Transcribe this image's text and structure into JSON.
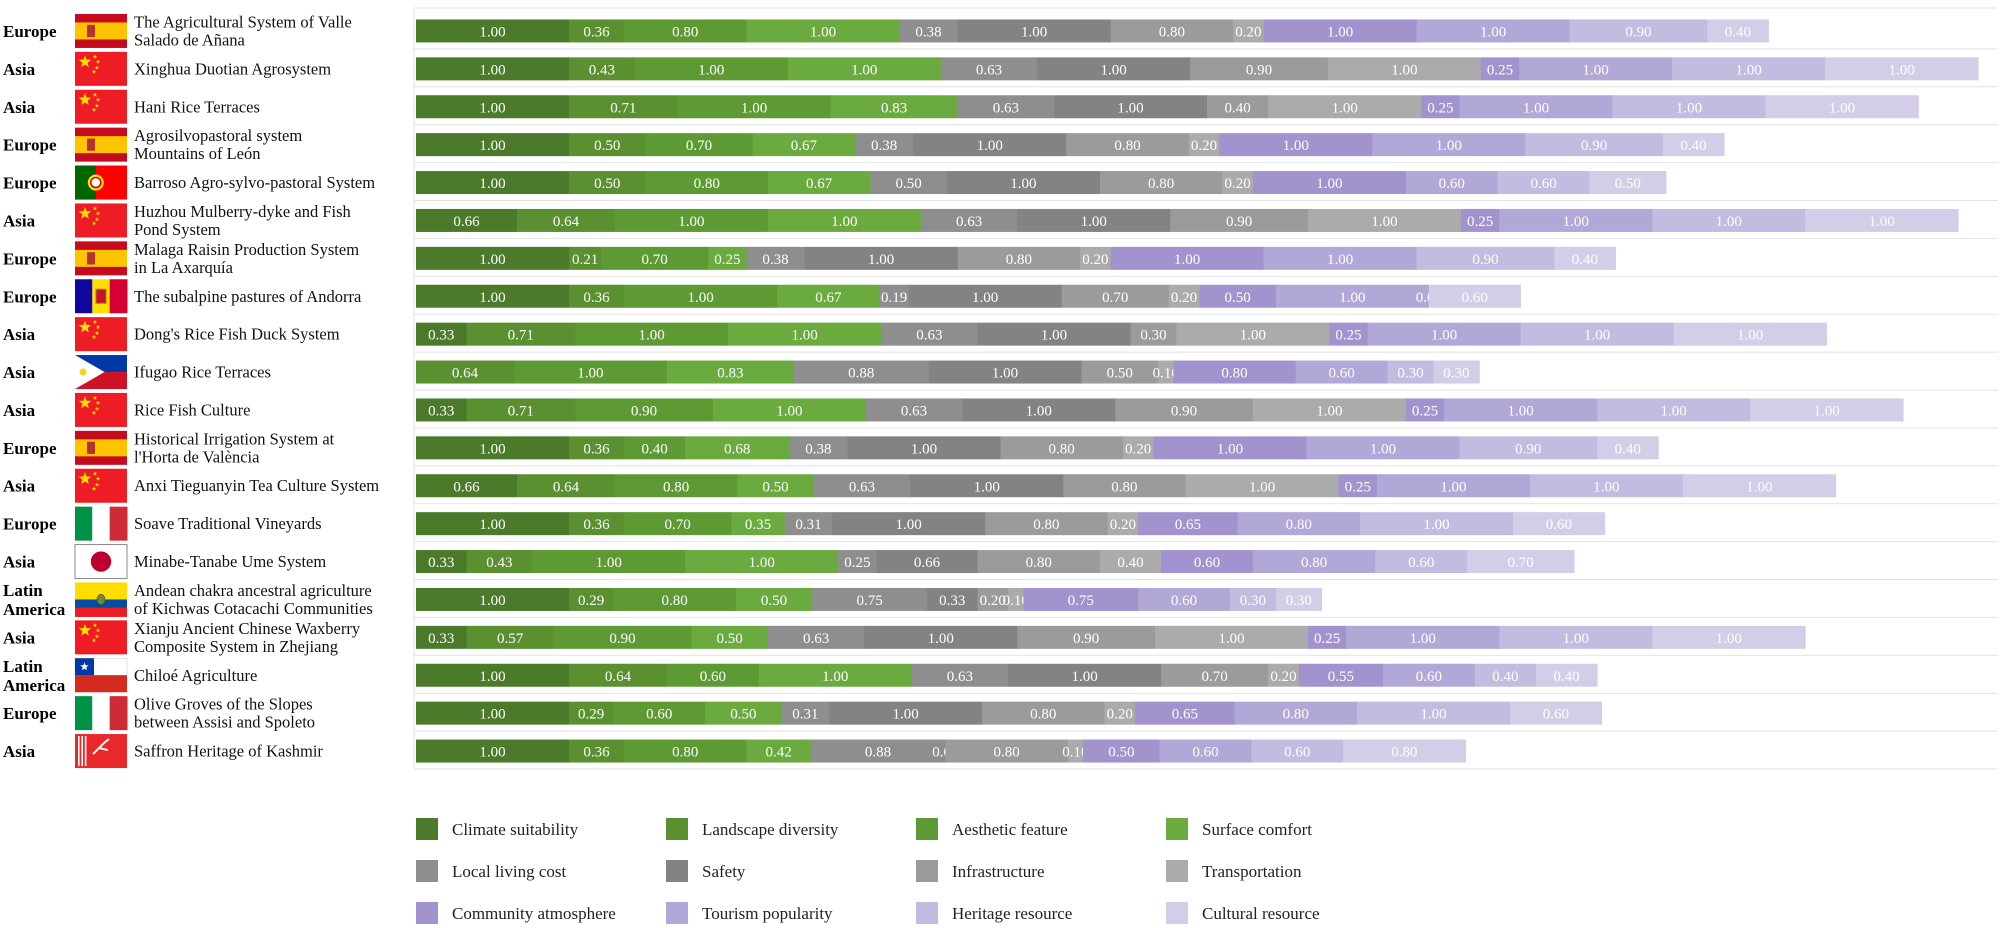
{
  "chart_data": {
    "type": "bar",
    "orientation": "horizontal",
    "stacked": true,
    "factors": [
      {
        "name": "Climate suitability",
        "color": "#4a7a2a"
      },
      {
        "name": "Landscape diversity",
        "color": "#5a902f"
      },
      {
        "name": "Aesthetic feature",
        "color": "#5d9a33"
      },
      {
        "name": "Surface comfort",
        "color": "#6aaa3e"
      },
      {
        "name": "Local living cost",
        "color": "#8e8e8e"
      },
      {
        "name": "Safety",
        "color": "#838383"
      },
      {
        "name": "Infrastructure",
        "color": "#9b9b9b"
      },
      {
        "name": "Transportation",
        "color": "#ababab"
      },
      {
        "name": "Community atmosphere",
        "color": "#a293cf"
      },
      {
        "name": "Tourism popularity",
        "color": "#b2a8d8"
      },
      {
        "name": "Heritage resource",
        "color": "#c4bce0"
      },
      {
        "name": "Cultural resource",
        "color": "#d3cde8"
      }
    ],
    "systems": [
      {
        "region": [
          "Europe"
        ],
        "flag": "spain",
        "name": [
          "The Agricultural System of Valle",
          "Salado de Añana"
        ],
        "values": [
          1.0,
          0.36,
          0.8,
          1.0,
          0.38,
          1.0,
          0.8,
          0.2,
          1.0,
          1.0,
          0.9,
          0.4
        ]
      },
      {
        "region": [
          "Asia"
        ],
        "flag": "china",
        "name": [
          "Xinghua Duotian Agrosystem"
        ],
        "values": [
          1.0,
          0.43,
          1.0,
          1.0,
          0.63,
          1.0,
          0.9,
          1.0,
          0.25,
          1.0,
          1.0,
          1.0
        ]
      },
      {
        "region": [
          "Asia"
        ],
        "flag": "china",
        "name": [
          "Hani Rice Terraces"
        ],
        "values": [
          1.0,
          0.71,
          1.0,
          0.83,
          0.63,
          1.0,
          0.4,
          1.0,
          0.25,
          1.0,
          1.0,
          1.0
        ]
      },
      {
        "region": [
          "Europe"
        ],
        "flag": "spain",
        "name": [
          "Agrosilvopastoral system",
          "Mountains of León"
        ],
        "values": [
          1.0,
          0.5,
          0.7,
          0.67,
          0.38,
          1.0,
          0.8,
          0.2,
          1.0,
          1.0,
          0.9,
          0.4
        ]
      },
      {
        "region": [
          "Europe"
        ],
        "flag": "portugal",
        "name": [
          "Barroso Agro-sylvo-pastoral System"
        ],
        "values": [
          1.0,
          0.5,
          0.8,
          0.67,
          0.5,
          1.0,
          0.8,
          0.2,
          1.0,
          0.6,
          0.6,
          0.5
        ]
      },
      {
        "region": [
          "Asia"
        ],
        "flag": "china",
        "name": [
          "Huzhou Mulberry-dyke and Fish",
          "Pond System"
        ],
        "values": [
          0.66,
          0.64,
          1.0,
          1.0,
          0.63,
          1.0,
          0.9,
          1.0,
          0.25,
          1.0,
          1.0,
          1.0
        ]
      },
      {
        "region": [
          "Europe"
        ],
        "flag": "spain",
        "name": [
          "Malaga Raisin Production System",
          "in La Axarquía"
        ],
        "values": [
          1.0,
          0.21,
          0.7,
          0.25,
          0.38,
          1.0,
          0.8,
          0.2,
          1.0,
          1.0,
          0.9,
          0.4
        ]
      },
      {
        "region": [
          "Europe"
        ],
        "flag": "andorra",
        "name": [
          "The subalpine pastures of Andorra"
        ],
        "values": [
          1.0,
          0.36,
          1.0,
          0.67,
          0.19,
          1.0,
          0.7,
          0.2,
          0.5,
          1.0,
          0.0,
          0.6
        ]
      },
      {
        "region": [
          "Asia"
        ],
        "flag": "china",
        "name": [
          "Dong's Rice Fish Duck System"
        ],
        "values": [
          0.33,
          0.71,
          1.0,
          1.0,
          0.63,
          1.0,
          0.3,
          1.0,
          0.25,
          1.0,
          1.0,
          1.0
        ]
      },
      {
        "region": [
          "Asia"
        ],
        "flag": "philippines",
        "name": [
          "Ifugao Rice Terraces"
        ],
        "values": [
          0.0,
          0.64,
          1.0,
          0.83,
          0.88,
          1.0,
          0.5,
          0.1,
          0.8,
          0.6,
          0.3,
          0.3
        ]
      },
      {
        "region": [
          "Asia"
        ],
        "flag": "china",
        "name": [
          "Rice Fish Culture"
        ],
        "values": [
          0.33,
          0.71,
          0.9,
          1.0,
          0.63,
          1.0,
          0.9,
          1.0,
          0.25,
          1.0,
          1.0,
          1.0
        ]
      },
      {
        "region": [
          "Europe"
        ],
        "flag": "spain",
        "name": [
          "Historical Irrigation System at",
          "l'Horta de València"
        ],
        "values": [
          1.0,
          0.36,
          0.4,
          0.68,
          0.38,
          1.0,
          0.8,
          0.2,
          1.0,
          1.0,
          0.9,
          0.4
        ]
      },
      {
        "region": [
          "Asia"
        ],
        "flag": "china",
        "name": [
          "Anxi Tieguanyin Tea Culture System"
        ],
        "values": [
          0.66,
          0.64,
          0.8,
          0.5,
          0.63,
          1.0,
          0.8,
          1.0,
          0.25,
          1.0,
          1.0,
          1.0
        ]
      },
      {
        "region": [
          "Europe"
        ],
        "flag": "italy",
        "name": [
          "Soave Traditional Vineyards"
        ],
        "values": [
          1.0,
          0.36,
          0.7,
          0.35,
          0.31,
          1.0,
          0.8,
          0.2,
          0.65,
          0.8,
          1.0,
          0.6
        ]
      },
      {
        "region": [
          "Asia"
        ],
        "flag": "japan",
        "name": [
          "Minabe-Tanabe Ume System"
        ],
        "values": [
          0.33,
          0.43,
          1.0,
          1.0,
          0.25,
          0.66,
          0.8,
          0.4,
          0.6,
          0.8,
          0.6,
          0.7
        ]
      },
      {
        "region": [
          "Latin",
          "America"
        ],
        "flag": "ecuador",
        "name": [
          "Andean chakra ancestral agriculture",
          "of Kichwas Cotacachi Communities"
        ],
        "values": [
          1.0,
          0.29,
          0.8,
          0.5,
          0.75,
          0.33,
          0.2,
          0.1,
          0.75,
          0.6,
          0.3,
          0.3
        ]
      },
      {
        "region": [
          "Asia"
        ],
        "flag": "china",
        "name": [
          "Xianju Ancient Chinese Waxberry",
          "Composite System in Zhejiang"
        ],
        "values": [
          0.33,
          0.57,
          0.9,
          0.5,
          0.63,
          1.0,
          0.9,
          1.0,
          0.25,
          1.0,
          1.0,
          1.0
        ]
      },
      {
        "region": [
          "Latin",
          "America"
        ],
        "flag": "chile",
        "name": [
          "Chiloé Agriculture"
        ],
        "values": [
          1.0,
          0.64,
          0.6,
          1.0,
          0.63,
          1.0,
          0.7,
          0.2,
          0.55,
          0.6,
          0.4,
          0.4
        ]
      },
      {
        "region": [
          "Europe"
        ],
        "flag": "italy",
        "name": [
          "Olive Groves of the Slopes",
          "between Assisi and Spoleto"
        ],
        "values": [
          1.0,
          0.29,
          0.6,
          0.5,
          0.31,
          1.0,
          0.8,
          0.2,
          0.65,
          0.8,
          1.0,
          0.6
        ]
      },
      {
        "region": [
          "Asia"
        ],
        "flag": "kashmir",
        "name": [
          "Saffron Heritage of Kashmir"
        ],
        "values": [
          1.0,
          0.36,
          0.8,
          0.42,
          0.88,
          0.0,
          0.8,
          0.1,
          0.5,
          0.6,
          0.6,
          0.8
        ]
      }
    ],
    "title": "",
    "xlabel": "",
    "ylabel": "",
    "legend_position": "bottom",
    "grid": true
  }
}
